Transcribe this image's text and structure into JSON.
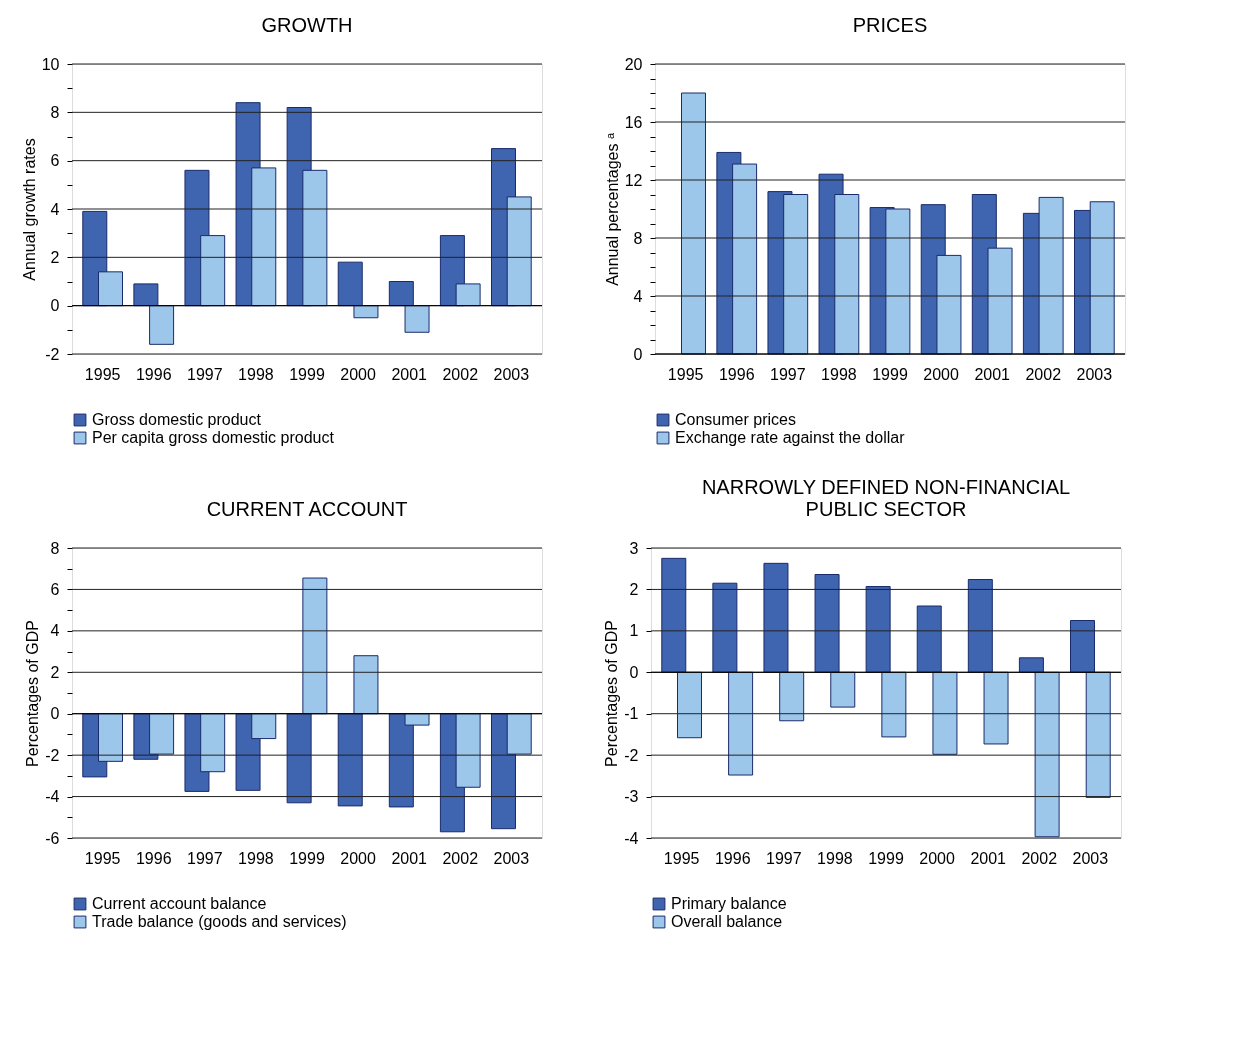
{
  "chart_data": [
    {
      "type": "bar",
      "title": "GROWTH",
      "ylabel": "Annual growth rates",
      "categories": [
        "1995",
        "1996",
        "1997",
        "1998",
        "1999",
        "2000",
        "2001",
        "2002",
        "2003"
      ],
      "series": [
        {
          "name": "Gross domestic product",
          "color": "#3f64b0",
          "values": [
            3.9,
            0.9,
            5.6,
            8.4,
            8.2,
            1.8,
            1.0,
            2.9,
            6.5
          ]
        },
        {
          "name": "Per capita gross domestic product",
          "color": "#9dc7ea",
          "values": [
            1.4,
            -1.6,
            2.9,
            5.7,
            5.6,
            -0.5,
            -1.1,
            0.9,
            4.5
          ]
        }
      ],
      "ylim": [
        -2,
        10
      ],
      "yticks": [
        -2,
        {
          "value": -1,
          "label": null
        },
        0,
        {
          "value": 1,
          "label": null
        },
        2,
        {
          "value": 3,
          "label": null
        },
        4,
        {
          "value": 5,
          "label": null
        },
        6,
        {
          "value": 7,
          "label": null
        },
        8,
        {
          "value": 9,
          "label": null
        },
        10
      ],
      "grid": "y",
      "legend": "bottom"
    },
    {
      "type": "bar",
      "title": "PRICES",
      "ylabel": "Annual percentages ᵃ",
      "categories": [
        "1995",
        "1996",
        "1997",
        "1998",
        "1999",
        "2000",
        "2001",
        "2002",
        "2003"
      ],
      "series": [
        {
          "name": "Consumer prices",
          "color": "#3f64b0",
          "values": [
            null,
            13.9,
            11.2,
            12.4,
            10.1,
            10.3,
            11.0,
            9.7,
            9.9
          ]
        },
        {
          "name": "Exchange rate against the dollar",
          "color": "#9dc7ea",
          "values": [
            18.0,
            13.1,
            11.0,
            11.0,
            10.0,
            6.8,
            7.3,
            10.8,
            10.5
          ]
        }
      ],
      "ylim": [
        0,
        20
      ],
      "yticks": [
        0,
        {
          "value": 1,
          "label": null
        },
        {
          "value": 2,
          "label": null
        },
        {
          "value": 3,
          "label": null
        },
        4,
        {
          "value": 5,
          "label": null
        },
        {
          "value": 6,
          "label": null
        },
        {
          "value": 7,
          "label": null
        },
        8,
        {
          "value": 9,
          "label": null
        },
        {
          "value": 10,
          "label": null
        },
        {
          "value": 11,
          "label": null
        },
        12,
        {
          "value": 13,
          "label": null
        },
        {
          "value": 14,
          "label": null
        },
        {
          "value": 15,
          "label": null
        },
        16,
        {
          "value": 17,
          "label": null
        },
        {
          "value": 18,
          "label": null
        },
        {
          "value": 19,
          "label": null
        },
        20
      ],
      "grid": "y",
      "legend": "bottom"
    },
    {
      "type": "bar",
      "title": "CURRENT ACCOUNT",
      "ylabel": "Percentages of GDP",
      "categories": [
        "1995",
        "1996",
        "1997",
        "1998",
        "1999",
        "2000",
        "2001",
        "2002",
        "2003"
      ],
      "series": [
        {
          "name": "Current account balance",
          "color": "#3f64b0",
          "values": [
            -3.05,
            -2.2,
            -3.75,
            -3.7,
            -4.3,
            -4.45,
            -4.5,
            -5.7,
            -5.55
          ]
        },
        {
          "name": "Trade balance (goods and services)",
          "color": "#9dc7ea",
          "values": [
            -2.3,
            -1.95,
            -2.8,
            -1.2,
            6.55,
            2.8,
            -0.55,
            -3.55,
            -1.95
          ]
        }
      ],
      "ylim": [
        -6,
        8
      ],
      "yticks": [
        -6,
        {
          "value": -5,
          "label": null
        },
        -4,
        {
          "value": -3,
          "label": null
        },
        -2,
        {
          "value": -1,
          "label": null
        },
        0,
        {
          "value": 1,
          "label": null
        },
        2,
        {
          "value": 3,
          "label": null
        },
        4,
        {
          "value": 5,
          "label": null
        },
        6,
        {
          "value": 7,
          "label": null
        },
        8
      ],
      "grid": "y",
      "legend": "bottom"
    },
    {
      "type": "bar",
      "title": "NARROWLY DEFINED NON-FINANCIAL\nPUBLIC SECTOR",
      "ylabel": "Percentages of GDP",
      "categories": [
        "1995",
        "1996",
        "1997",
        "1998",
        "1999",
        "2000",
        "2001",
        "2002",
        "2003"
      ],
      "series": [
        {
          "name": "Primary balance",
          "color": "#3f64b0",
          "values": [
            2.75,
            2.15,
            2.63,
            2.36,
            2.07,
            1.6,
            2.24,
            0.35,
            1.25
          ]
        },
        {
          "name": "Overall balance",
          "color": "#9dc7ea",
          "values": [
            -1.58,
            -2.48,
            -1.17,
            -0.84,
            -1.56,
            -1.98,
            -1.73,
            -3.97,
            -3.02
          ]
        }
      ],
      "ylim": [
        -4,
        3
      ],
      "yticks": [
        -4,
        -3,
        -2,
        -1,
        0,
        1,
        2,
        3
      ],
      "grid": "y",
      "legend": "bottom"
    }
  ]
}
